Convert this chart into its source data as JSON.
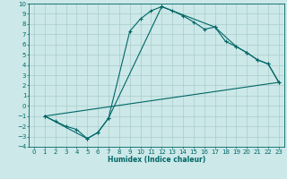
{
  "xlabel": "Humidex (Indice chaleur)",
  "xlim": [
    -0.5,
    23.5
  ],
  "ylim": [
    -4,
    10
  ],
  "xticks": [
    0,
    1,
    2,
    3,
    4,
    5,
    6,
    7,
    8,
    9,
    10,
    11,
    12,
    13,
    14,
    15,
    16,
    17,
    18,
    19,
    20,
    21,
    22,
    23
  ],
  "yticks": [
    -4,
    -3,
    -2,
    -1,
    0,
    1,
    2,
    3,
    4,
    5,
    6,
    7,
    8,
    9,
    10
  ],
  "bg_color": "#cce8e8",
  "line_color": "#006666",
  "grid_color": "#aacccc",
  "curve1_x": [
    1,
    2,
    3,
    4,
    5,
    6,
    7,
    9,
    10,
    11,
    12,
    13,
    14,
    15,
    16,
    17,
    18,
    19,
    20,
    21,
    22,
    23
  ],
  "curve1_y": [
    -1.0,
    -1.5,
    -2.0,
    -2.3,
    -3.2,
    -2.6,
    -1.2,
    7.3,
    8.5,
    9.3,
    9.7,
    9.3,
    8.8,
    8.2,
    7.5,
    7.7,
    6.3,
    5.8,
    5.2,
    4.5,
    4.1,
    2.3
  ],
  "curve2_x": [
    1,
    5,
    6,
    7,
    12,
    17,
    19,
    20,
    21,
    22,
    23
  ],
  "curve2_y": [
    -1.0,
    -3.2,
    -2.6,
    -1.2,
    9.7,
    7.7,
    5.8,
    5.2,
    4.5,
    4.1,
    2.3
  ],
  "curve3_x": [
    1,
    23
  ],
  "curve3_y": [
    -1.0,
    2.3
  ]
}
